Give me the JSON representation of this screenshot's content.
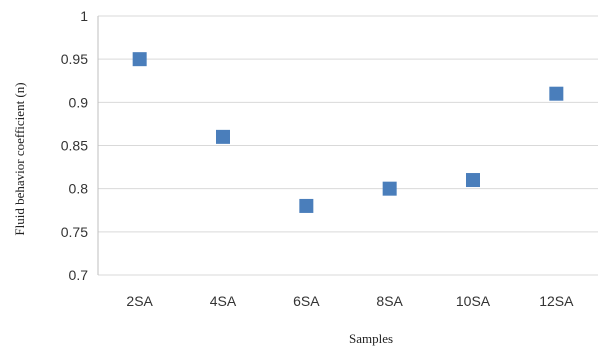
{
  "chart_data": {
    "type": "scatter",
    "xlabel": "Samples",
    "ylabel": "Fluid behavior coefficient (n)",
    "categories": [
      "2SA",
      "4SA",
      "6SA",
      "8SA",
      "10SA",
      "12SA"
    ],
    "series": [
      {
        "values": [
          0.95,
          0.86,
          0.78,
          0.8,
          0.81,
          0.91
        ]
      }
    ],
    "ylim": [
      0.7,
      1
    ],
    "yticks": [
      "0.7",
      "0.75",
      "0.8",
      "0.85",
      "0.9",
      "0.95",
      "1"
    ],
    "grid": "horizontal",
    "marker_color": "#4a7ebb",
    "grid_color": "#d9d9d9"
  }
}
